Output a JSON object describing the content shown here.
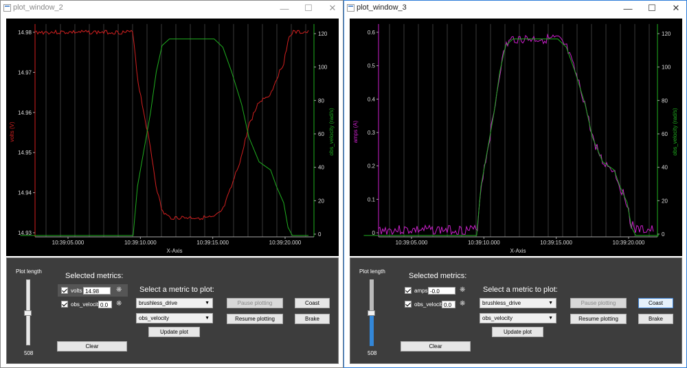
{
  "windows": [
    {
      "title": "plot_window_2",
      "plot": {
        "left_axis": "volts (V)",
        "right_axis": "obs_velocity (rad/s)",
        "x_axis": "X-Axis",
        "left_ticks": [
          "14.98",
          "14.97",
          "14.96",
          "14.95",
          "14.94",
          "14.93"
        ],
        "right_ticks": [
          "120",
          "100",
          "80",
          "60",
          "40",
          "20",
          "0"
        ],
        "x_ticks": [
          "10:39:05.000",
          "10:39:10.000",
          "10:39:15.000",
          "10:39:20.000"
        ],
        "left_color": "#d42020",
        "right_color": "#20b020"
      },
      "controls": {
        "plot_length_label": "Plot length",
        "plot_length_value": "508",
        "selected_label": "Selected metrics:",
        "metrics": [
          {
            "name": "volts",
            "value": "14.98"
          },
          {
            "name": "obs_velocit",
            "value": "0.0"
          }
        ],
        "select_label": "Select a metric to plot:",
        "combo1": "brushless_drive",
        "combo2": "obs_velocity",
        "update": "Update plot",
        "pause": "Pause plotting",
        "resume": "Resume plotting",
        "coast": "Coast",
        "brake": "Brake",
        "clear": "Clear"
      }
    },
    {
      "title": "plot_window_3",
      "plot": {
        "left_axis": "amps (A)",
        "right_axis": "obs_velocity (rad/s)",
        "x_axis": "X-Axis",
        "left_ticks": [
          "0.6",
          "0.5",
          "0.4",
          "0.3",
          "0.2",
          "0.1",
          "0"
        ],
        "right_ticks": [
          "120",
          "100",
          "80",
          "60",
          "40",
          "20",
          "0"
        ],
        "x_ticks": [
          "10:39:05.000",
          "10:39:10.000",
          "10:39:15.000",
          "10:39:20.000"
        ],
        "left_color": "#cc20cc",
        "right_color": "#20b020"
      },
      "controls": {
        "plot_length_label": "Plot length",
        "plot_length_value": "508",
        "selected_label": "Selected metrics:",
        "metrics": [
          {
            "name": "amps",
            "value": "-0.0"
          },
          {
            "name": "obs_velocit",
            "value": "0.0"
          }
        ],
        "select_label": "Select a metric to plot:",
        "combo1": "brushless_drive",
        "combo2": "obs_velocity",
        "update": "Update plot",
        "pause": "Pause plotting",
        "resume": "Resume plotting",
        "coast": "Coast",
        "brake": "Brake",
        "clear": "Clear"
      }
    }
  ],
  "icons": {
    "minimize": "minimize-icon",
    "maximize": "maximize-icon",
    "close": "close-icon",
    "gear": "gear-icon",
    "dropdown": "chevron-down-icon"
  }
}
